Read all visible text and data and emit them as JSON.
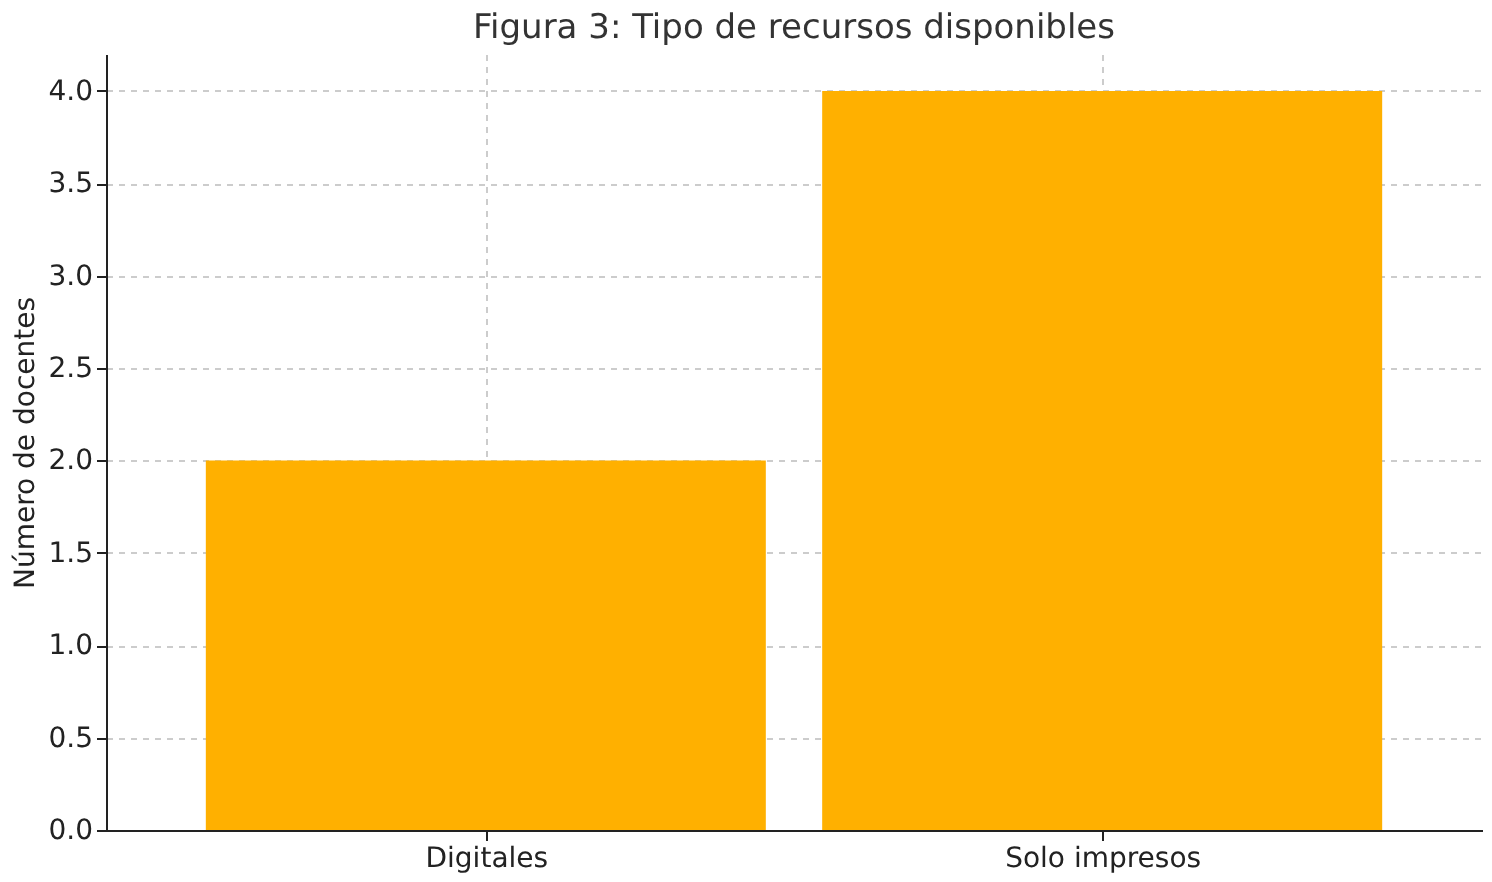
{
  "chart_data": {
    "type": "bar",
    "title": "Figura 3: Tipo de recursos disponibles",
    "ylabel": "Número de docentes",
    "categories": [
      "Digitales",
      "Solo impresos"
    ],
    "series": [
      {
        "color": "#ffb000",
        "values": [
          2,
          4
        ]
      }
    ],
    "ylim": [
      0,
      4.2
    ],
    "yticks": [
      {
        "value": 0,
        "label": "0.0"
      },
      {
        "value": 0.5,
        "label": "0.5"
      },
      {
        "value": 1,
        "label": "1.0"
      },
      {
        "value": 1.5,
        "label": "1.5"
      },
      {
        "value": 2,
        "label": "2.0"
      },
      {
        "value": 2.5,
        "label": "2.5"
      },
      {
        "value": 3,
        "label": "3.0"
      },
      {
        "value": 3.5,
        "label": "3.5"
      },
      {
        "value": 4,
        "label": "4.0"
      }
    ],
    "grid": true
  }
}
